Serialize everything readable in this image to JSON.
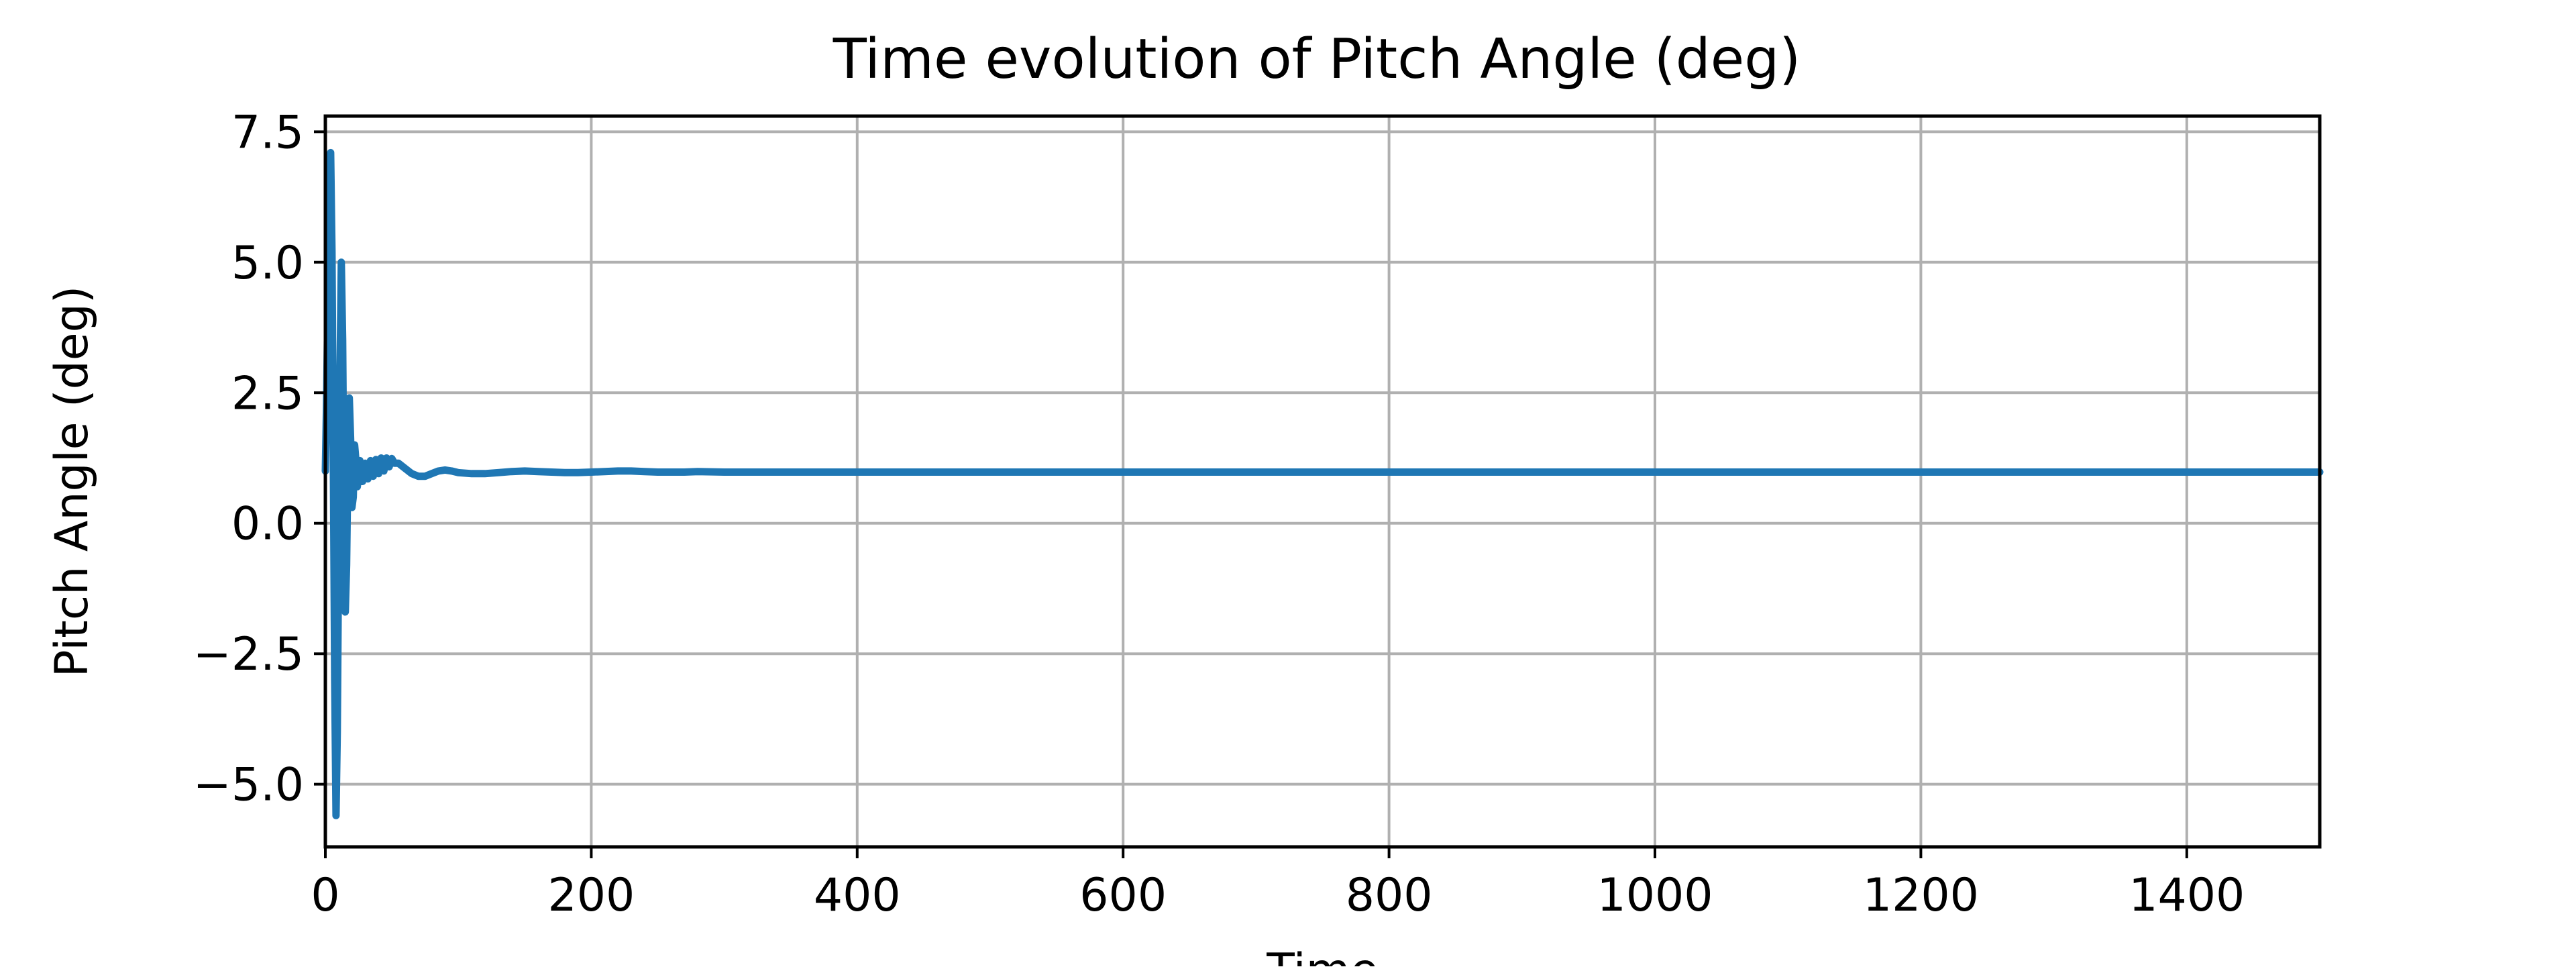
{
  "chart_data": {
    "type": "line",
    "title": "Time evolution of Pitch Angle (deg)",
    "xlabel": "Time",
    "ylabel": "Pitch Angle (deg)",
    "xlim": [
      0,
      1500
    ],
    "ylim": [
      -6.2,
      7.8
    ],
    "grid": true,
    "legend": "none",
    "x_ticks": [
      0,
      200,
      400,
      600,
      800,
      1000,
      1200,
      1400
    ],
    "x_tick_labels": [
      "0",
      "200",
      "400",
      "600",
      "800",
      "1000",
      "1200",
      "1400"
    ],
    "y_ticks": [
      7.5,
      5.0,
      2.5,
      0.0,
      -2.5,
      -5.0
    ],
    "y_tick_labels": [
      "7.5",
      "5.0",
      "2.5",
      "0.0",
      "−2.5",
      "−5.0"
    ],
    "colors": {
      "series": "#1f77b4",
      "grid": "#b0b0b0",
      "axes": "#000000"
    },
    "series": [
      {
        "x": [
          0,
          1,
          2,
          3,
          4,
          5,
          6,
          7,
          8,
          9,
          10,
          11,
          12,
          13,
          14,
          15,
          16,
          17,
          18,
          19,
          20,
          21,
          22,
          23,
          24,
          25,
          26,
          27,
          28,
          30,
          32,
          34,
          36,
          38,
          40,
          42,
          44,
          46,
          48,
          50,
          52,
          55,
          60,
          65,
          70,
          75,
          80,
          85,
          90,
          95,
          100,
          110,
          120,
          130,
          140,
          150,
          160,
          170,
          180,
          190,
          200,
          210,
          220,
          230,
          240,
          250,
          260,
          270,
          280,
          300,
          320,
          340,
          360,
          380,
          400,
          450,
          500,
          600,
          700,
          800,
          900,
          1000,
          1100,
          1200,
          1300,
          1400,
          1500
        ],
        "y": [
          1.0,
          2.5,
          4.5,
          6.6,
          7.1,
          5.2,
          1.2,
          -3.0,
          -5.6,
          -4.0,
          -0.5,
          2.8,
          5.0,
          3.5,
          0.3,
          -1.7,
          -0.8,
          1.3,
          2.4,
          1.6,
          0.3,
          0.5,
          1.5,
          1.2,
          0.7,
          0.9,
          1.2,
          0.8,
          0.8,
          1.15,
          0.85,
          1.2,
          0.9,
          1.22,
          0.95,
          1.25,
          1.0,
          1.25,
          1.08,
          1.24,
          1.15,
          1.15,
          1.05,
          0.95,
          0.9,
          0.9,
          0.95,
          1.0,
          1.02,
          1.0,
          0.97,
          0.95,
          0.95,
          0.97,
          0.99,
          1.0,
          0.99,
          0.98,
          0.97,
          0.97,
          0.98,
          0.99,
          1.0,
          1.0,
          0.99,
          0.98,
          0.98,
          0.98,
          0.99,
          0.98,
          0.98,
          0.98,
          0.98,
          0.98,
          0.98,
          0.98,
          0.98,
          0.98,
          0.98,
          0.98,
          0.98,
          0.98,
          0.98,
          0.98,
          0.98,
          0.98,
          0.98
        ]
      }
    ]
  }
}
